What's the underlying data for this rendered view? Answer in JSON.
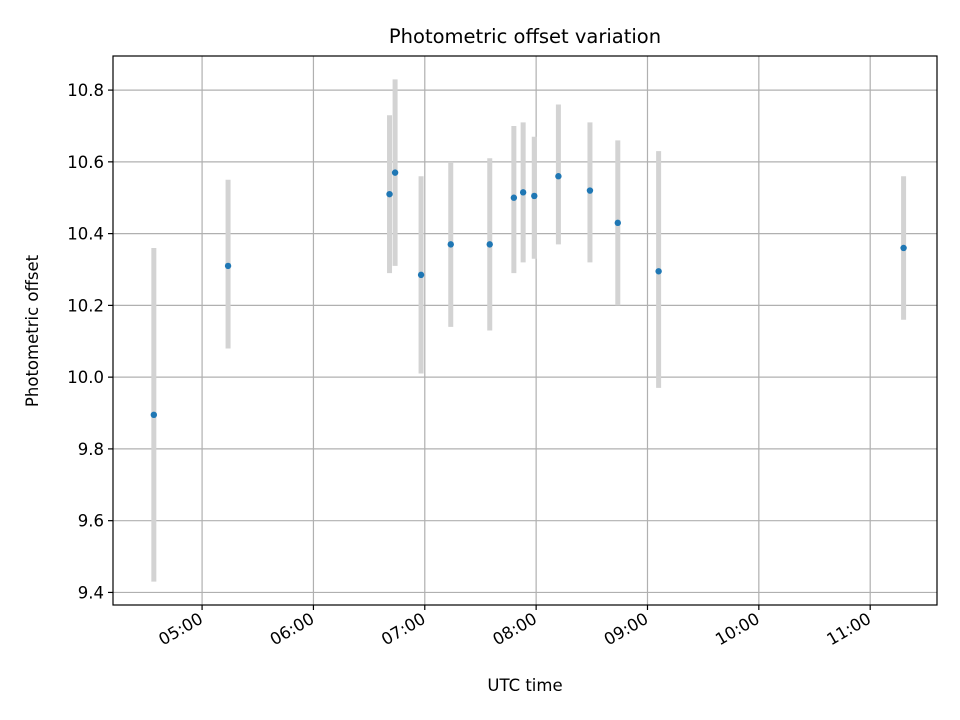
{
  "chart_data": {
    "type": "scatter",
    "title": "Photometric offset variation",
    "xlabel": "UTC time",
    "ylabel": "Photometric offset",
    "x_ticks": [
      "05:00",
      "06:00",
      "07:00",
      "08:00",
      "09:00",
      "10:00",
      "11:00"
    ],
    "y_ticks": [
      "9.4",
      "9.6",
      "9.8",
      "10.0",
      "10.2",
      "10.4",
      "10.6",
      "10.8"
    ],
    "xlim": [
      "04:12",
      "11:36"
    ],
    "ylim": [
      9.365,
      10.895
    ],
    "grid": true,
    "marker_color": "#1f77b4",
    "errorbar_color": "#d3d3d3",
    "points": [
      {
        "x": "04:34",
        "y": 9.895,
        "ymin": 9.43,
        "ymax": 10.36
      },
      {
        "x": "05:14",
        "y": 10.31,
        "ymin": 10.08,
        "ymax": 10.55
      },
      {
        "x": "06:41",
        "y": 10.51,
        "ymin": 10.29,
        "ymax": 10.73
      },
      {
        "x": "06:44",
        "y": 10.57,
        "ymin": 10.31,
        "ymax": 10.83
      },
      {
        "x": "06:58",
        "y": 10.285,
        "ymin": 10.01,
        "ymax": 10.56
      },
      {
        "x": "07:14",
        "y": 10.37,
        "ymin": 10.14,
        "ymax": 10.6
      },
      {
        "x": "07:35",
        "y": 10.37,
        "ymin": 10.13,
        "ymax": 10.61
      },
      {
        "x": "07:48",
        "y": 10.5,
        "ymin": 10.29,
        "ymax": 10.7
      },
      {
        "x": "07:53",
        "y": 10.515,
        "ymin": 10.32,
        "ymax": 10.71
      },
      {
        "x": "07:59",
        "y": 10.505,
        "ymin": 10.33,
        "ymax": 10.67
      },
      {
        "x": "08:12",
        "y": 10.56,
        "ymin": 10.37,
        "ymax": 10.76
      },
      {
        "x": "08:29",
        "y": 10.52,
        "ymin": 10.32,
        "ymax": 10.71
      },
      {
        "x": "08:44",
        "y": 10.43,
        "ymin": 10.2,
        "ymax": 10.66
      },
      {
        "x": "09:06",
        "y": 10.295,
        "ymin": 9.97,
        "ymax": 10.63
      },
      {
        "x": "11:18",
        "y": 10.36,
        "ymin": 10.16,
        "ymax": 10.56
      }
    ]
  }
}
